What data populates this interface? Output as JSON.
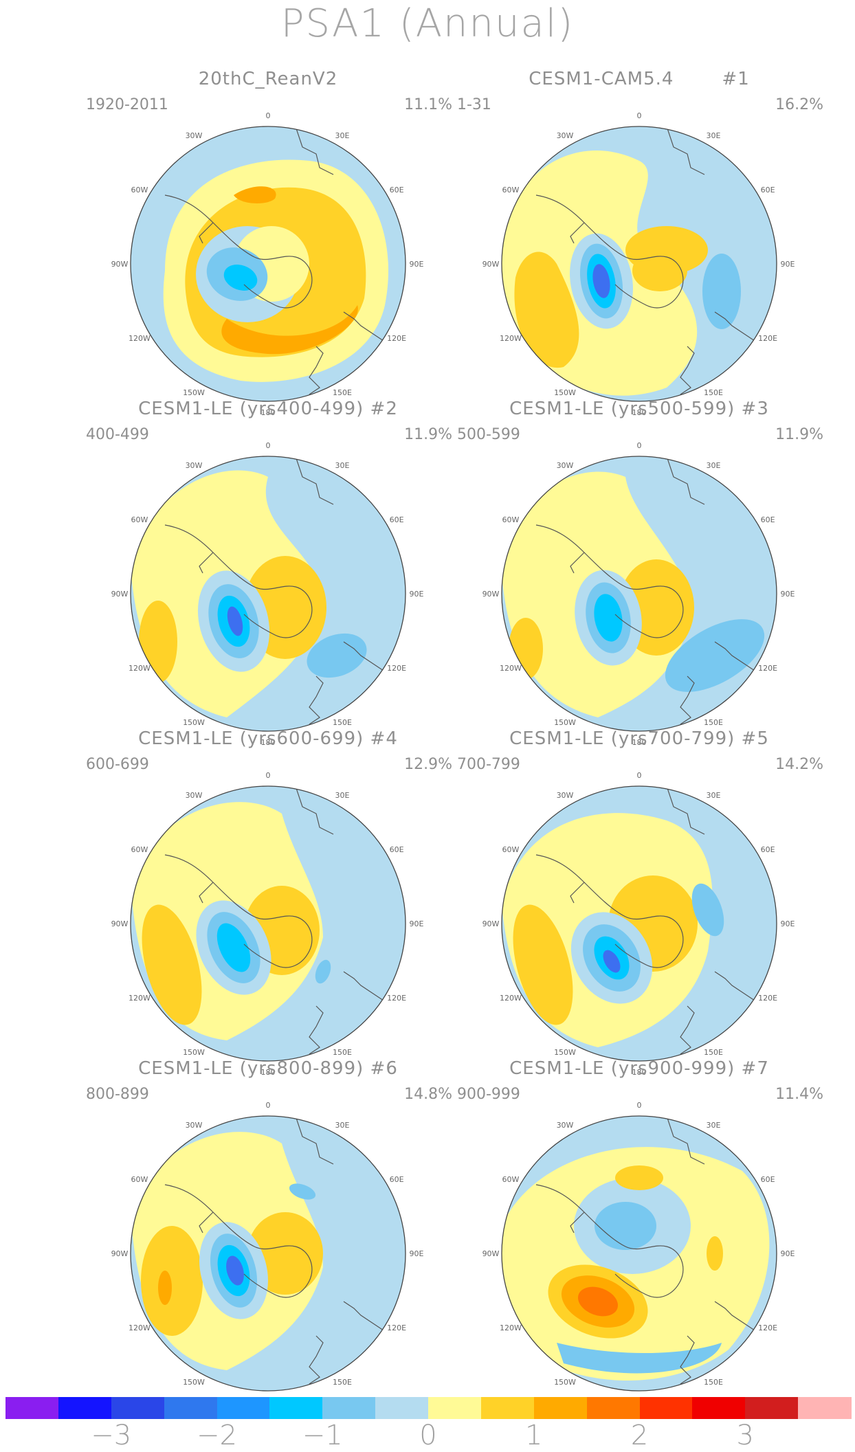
{
  "title": "PSA1 (Annual)",
  "panels": [
    {
      "title": "20thC_ReanV2",
      "years": "1920-2011",
      "variance": "11.1%",
      "tag": ""
    },
    {
      "title": "CESM1-CAM5.4",
      "years": "1-31",
      "variance": "16.2%",
      "tag": "#1"
    },
    {
      "title": "CESM1-LE (yrs400-499) #2",
      "years": "400-499",
      "variance": "11.9%",
      "tag": ""
    },
    {
      "title": "CESM1-LE (yrs500-599) #3",
      "years": "500-599",
      "variance": "11.9%",
      "tag": ""
    },
    {
      "title": "CESM1-LE (yrs600-699) #4",
      "years": "600-699",
      "variance": "12.9%",
      "tag": ""
    },
    {
      "title": "CESM1-LE (yrs700-799) #5",
      "years": "700-799",
      "variance": "14.2%",
      "tag": ""
    },
    {
      "title": "CESM1-LE (yrs800-899) #6",
      "years": "800-899",
      "variance": "14.8%",
      "tag": ""
    },
    {
      "title": "CESM1-LE (yrs900-999) #7",
      "years": "900-999",
      "variance": "11.4%",
      "tag": ""
    }
  ],
  "longitude_labels": [
    "0",
    "30E",
    "60E",
    "90E",
    "120E",
    "150E",
    "180",
    "150W",
    "120W",
    "90W",
    "60W",
    "30W"
  ],
  "colorbar": {
    "colors": [
      "#8a1ef0",
      "#1414ff",
      "#2a46e8",
      "#2f78ee",
      "#1e96ff",
      "#00c8ff",
      "#78c8f0",
      "#b4dcf0",
      "#fffa96",
      "#ffd228",
      "#ffaa00",
      "#ff7800",
      "#ff3200",
      "#f00000",
      "#d21e1e",
      "#ffb4b4"
    ],
    "labels": [
      "−3",
      "−2",
      "−1",
      "0",
      "1",
      "2",
      "3"
    ]
  },
  "palette": {
    "neg3": "#3d6ff0",
    "neg2": "#00c8ff",
    "neg1": "#78c8f0",
    "neg0": "#b4dcf0",
    "pos0": "#fffa96",
    "pos1": "#ffd228",
    "pos2": "#ffaa00",
    "pos3": "#ff7800",
    "coast": "#555555"
  }
}
